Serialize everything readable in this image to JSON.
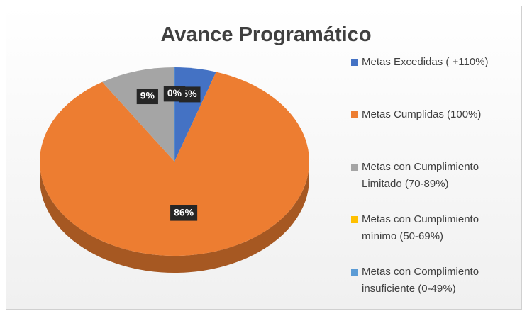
{
  "chart_data": {
    "type": "pie3d",
    "title": "Avance Programático",
    "categories": [
      "Metas Excedidas ( +110%)",
      "Metas Cumplidas (100%)",
      "Metas con Cumplimiento Limitado (70-89%)",
      "Metas con Cumplimiento mínimo (50-69%)",
      "Metas con Complimiento insuficiente (0-49%)"
    ],
    "values": [
      5,
      86,
      9,
      0,
      0
    ],
    "value_labels": [
      "5%",
      "86%",
      "9%",
      "0%",
      "0%"
    ],
    "colors": [
      "#4472c4",
      "#ed7d31",
      "#a5a5a5",
      "#ffc000",
      "#5b9bd5"
    ],
    "legend": "right"
  }
}
